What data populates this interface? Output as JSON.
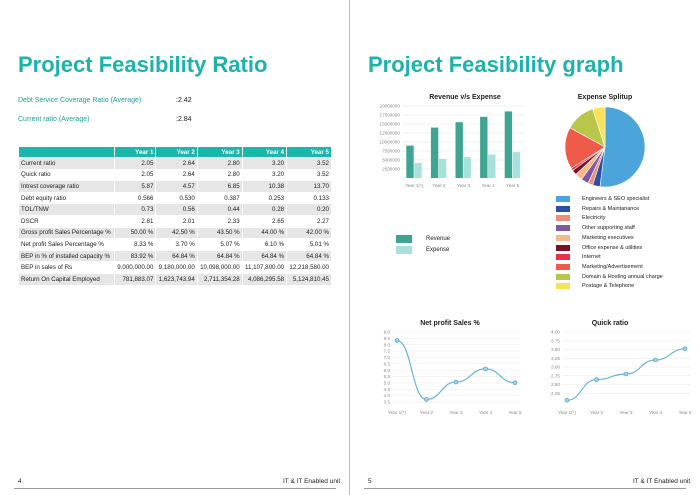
{
  "left": {
    "title": "Project Feasibility Ratio",
    "ratios": [
      {
        "label": "Debt Service Coverage Ratio (Average)",
        "value": ":2.42"
      },
      {
        "label": "Current ratio (Average)",
        "value": ":2.84"
      }
    ],
    "table": {
      "headers": [
        "",
        "Year 1",
        "Year 2",
        "Year 3",
        "Year 4",
        "Year 5"
      ],
      "rows": [
        [
          "Current ratio",
          "2.05",
          "2.64",
          "2.80",
          "3.20",
          "3.52"
        ],
        [
          "Quick ratio",
          "2.05",
          "2.64",
          "2.80",
          "3.20",
          "3.52"
        ],
        [
          "Intrest coverage ratio",
          "5.87",
          "4.57",
          "6.85",
          "10.38",
          "13.70"
        ],
        [
          "Debt equity ratio",
          "0.566",
          "0.530",
          "0.387",
          "0.253",
          "0.133"
        ],
        [
          "TOL/TNW",
          "0.73",
          "0.56",
          "0.44",
          "0.28",
          "0.20"
        ],
        [
          "DSCR",
          "2.81",
          "2.01",
          "2.33",
          "2.65",
          "2.27"
        ],
        [
          "Gross profit Sales Percentage %",
          "50.00 %",
          "42.50 %",
          "43.50 %",
          "44.00 %",
          "42.00 %"
        ],
        [
          "Net profit Sales Percentage %",
          "8.33 %",
          "3.70 %",
          "5.07 %",
          "6.10 %",
          "5.01 %"
        ],
        [
          "BEP in % of installed capacity %",
          "83.92 %",
          "64.84 %",
          "64.84 %",
          "64.84 %",
          "64.84 %"
        ],
        [
          "BEP in sales of Rs",
          "9,000,000.00",
          "9,180,000.00",
          "10,098,000.00",
          "11,107,800.00",
          "12,218,580.00"
        ],
        [
          "Return On Capital Employed",
          "781,883.07",
          "1,623,743.94",
          "2,711,354.28",
          "4,086,295.58",
          "5,124,810.45"
        ]
      ]
    },
    "footer_page": "4",
    "footer_text": "IT & IT Enabled unit"
  },
  "right": {
    "title": "Project Feasibility graph",
    "footer_page": "5",
    "footer_text": "IT & IT Enabled unit"
  },
  "chart_data": [
    {
      "type": "bar",
      "title": "Revenue v/s Expense",
      "categories": [
        "Year 1(*)",
        "Year 2",
        "Year 3",
        "Year 4",
        "Year 5"
      ],
      "series": [
        {
          "name": "Revenue",
          "values": [
            9000000,
            14000000,
            15500000,
            17000000,
            18500000
          ],
          "color": "#3fa592"
        },
        {
          "name": "Expense",
          "values": [
            4200000,
            5300000,
            5800000,
            6500000,
            7200000
          ],
          "color": "#a8e0dc"
        }
      ],
      "yticks": [
        "20000000",
        "17500000",
        "15000000",
        "12500000",
        "10000000",
        "7500000",
        "5000000",
        "2500000"
      ],
      "ylim": [
        0,
        20000000
      ]
    },
    {
      "type": "pie",
      "title": "Expense Splitup",
      "labels": [
        "Engineers & SEO specialist",
        "Repairs & Maintanance",
        "Electricity",
        "Other supporting staff",
        "Marketing executives",
        "Office expense & utilities",
        "Internet",
        "Marketing/Advertisement",
        "Domain & Hosting annual charge",
        "Postage & Telephone"
      ],
      "values": [
        52,
        3,
        2,
        3,
        3,
        2,
        1,
        17,
        12,
        5
      ],
      "colors": [
        "#4ba5db",
        "#2a4fa8",
        "#f08d7a",
        "#7b5aa3",
        "#f5b98a",
        "#7a1020",
        "#e8304a",
        "#f05a4a",
        "#b8c74a",
        "#f7e25a"
      ]
    },
    {
      "type": "line",
      "title": "Net profit Sales %",
      "categories": [
        "Year 1(*)",
        "Year 2",
        "Year 3",
        "Year 4",
        "Year 5"
      ],
      "values": [
        8.33,
        3.7,
        5.07,
        6.1,
        5.01
      ],
      "yticks": [
        "9.0",
        "8.5",
        "8.0",
        "7.5",
        "7.0",
        "6.5",
        "6.0",
        "5.5",
        "5.0",
        "4.5",
        "4.0",
        "3.5"
      ],
      "ylim": [
        3.5,
        9.0
      ]
    },
    {
      "type": "line",
      "title": "Quick ratio",
      "categories": [
        "Year 1(*)",
        "Year 2",
        "Year 3",
        "Year 4",
        "Year 5"
      ],
      "values": [
        2.05,
        2.64,
        2.8,
        3.2,
        3.52
      ],
      "yticks": [
        "4.00",
        "3.75",
        "3.50",
        "3.25",
        "3.00",
        "2.75",
        "2.50",
        "2.25"
      ],
      "ylim": [
        2.0,
        4.0
      ]
    }
  ]
}
